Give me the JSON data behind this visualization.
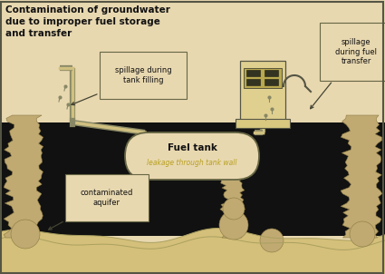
{
  "bg_color": "#e8d8b0",
  "underground_color": "#111111",
  "rock_color": "#c0aa72",
  "rock_edge": "#8a7840",
  "tank_color": "#e8d8b0",
  "pipe_color": "#d0c080",
  "pipe_edge": "#888866",
  "text_color": "#111111",
  "leakage_color": "#b8a020",
  "title": "Contamination of groundwater\ndue to improper fuel storage\nand transfer",
  "label_tank_fill": "spillage during\ntank filling",
  "label_fuel_transfer": "spillage\nduring fuel\ntransfer",
  "label_fuel_tank": "Fuel tank",
  "label_leakage": "leakage through tank wall",
  "label_aquifer": "contaminated\naquifer",
  "fig_width": 4.25,
  "fig_height": 3.02,
  "dpi": 100
}
